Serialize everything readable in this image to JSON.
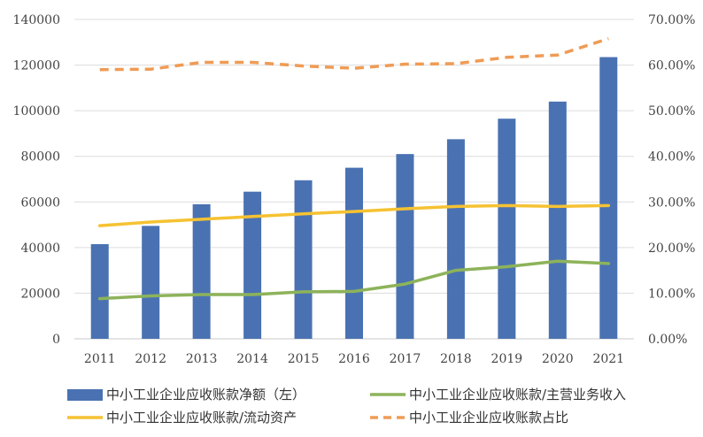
{
  "chart_data": {
    "type": "bar",
    "categories": [
      "2011",
      "2012",
      "2013",
      "2014",
      "2015",
      "2016",
      "2017",
      "2018",
      "2019",
      "2020",
      "2021"
    ],
    "y_left": {
      "ylim": [
        0,
        140000
      ],
      "ticks": [
        "0",
        "20000",
        "40000",
        "60000",
        "80000",
        "100000",
        "120000",
        "140000"
      ]
    },
    "y_right": {
      "ylim": [
        0,
        0.7
      ],
      "ticks": [
        "0.00%",
        "10.00%",
        "20.00%",
        "30.00%",
        "40.00%",
        "50.00%",
        "60.00%",
        "70.00%"
      ]
    },
    "grid": "horizontal",
    "legend_position": "bottom",
    "series": [
      {
        "name": "中小工业企业应收账款净额（左）",
        "kind": "bar",
        "axis": "left",
        "color": "#4a72b2",
        "values": [
          41500,
          49500,
          59000,
          64500,
          69500,
          75000,
          81000,
          87500,
          96500,
          104000,
          123500
        ]
      },
      {
        "name": "中小工业企业应收账款/主营业务收入",
        "kind": "line",
        "axis": "right",
        "color": "#8db35a",
        "dash": "solid",
        "values": [
          0.088,
          0.094,
          0.097,
          0.097,
          0.103,
          0.104,
          0.12,
          0.15,
          0.158,
          0.17,
          0.165
        ]
      },
      {
        "name": "中小工业企业应收账款/流动资产",
        "kind": "line",
        "axis": "right",
        "color": "#f5c232",
        "dash": "solid",
        "values": [
          0.248,
          0.256,
          0.262,
          0.268,
          0.274,
          0.279,
          0.285,
          0.29,
          0.292,
          0.29,
          0.292
        ]
      },
      {
        "name": "中小工业企业应收账款占比",
        "kind": "line",
        "axis": "right",
        "color": "#ef9b55",
        "dash": "dashed",
        "values": [
          0.59,
          0.591,
          0.606,
          0.606,
          0.598,
          0.593,
          0.602,
          0.603,
          0.617,
          0.622,
          0.658
        ]
      }
    ],
    "legend": [
      {
        "label": "中小工业企业应收账款净额（左）",
        "swatch": "bar",
        "color": "#4a72b2"
      },
      {
        "label": "中小工业企业应收账款/主营业务收入",
        "swatch": "line",
        "color": "#8db35a",
        "dash": "solid"
      },
      {
        "label": "中小工业企业应收账款/流动资产",
        "swatch": "line",
        "color": "#f5c232",
        "dash": "solid"
      },
      {
        "label": "中小工业企业应收账款占比",
        "swatch": "line",
        "color": "#ef9b55",
        "dash": "dashed"
      }
    ]
  }
}
